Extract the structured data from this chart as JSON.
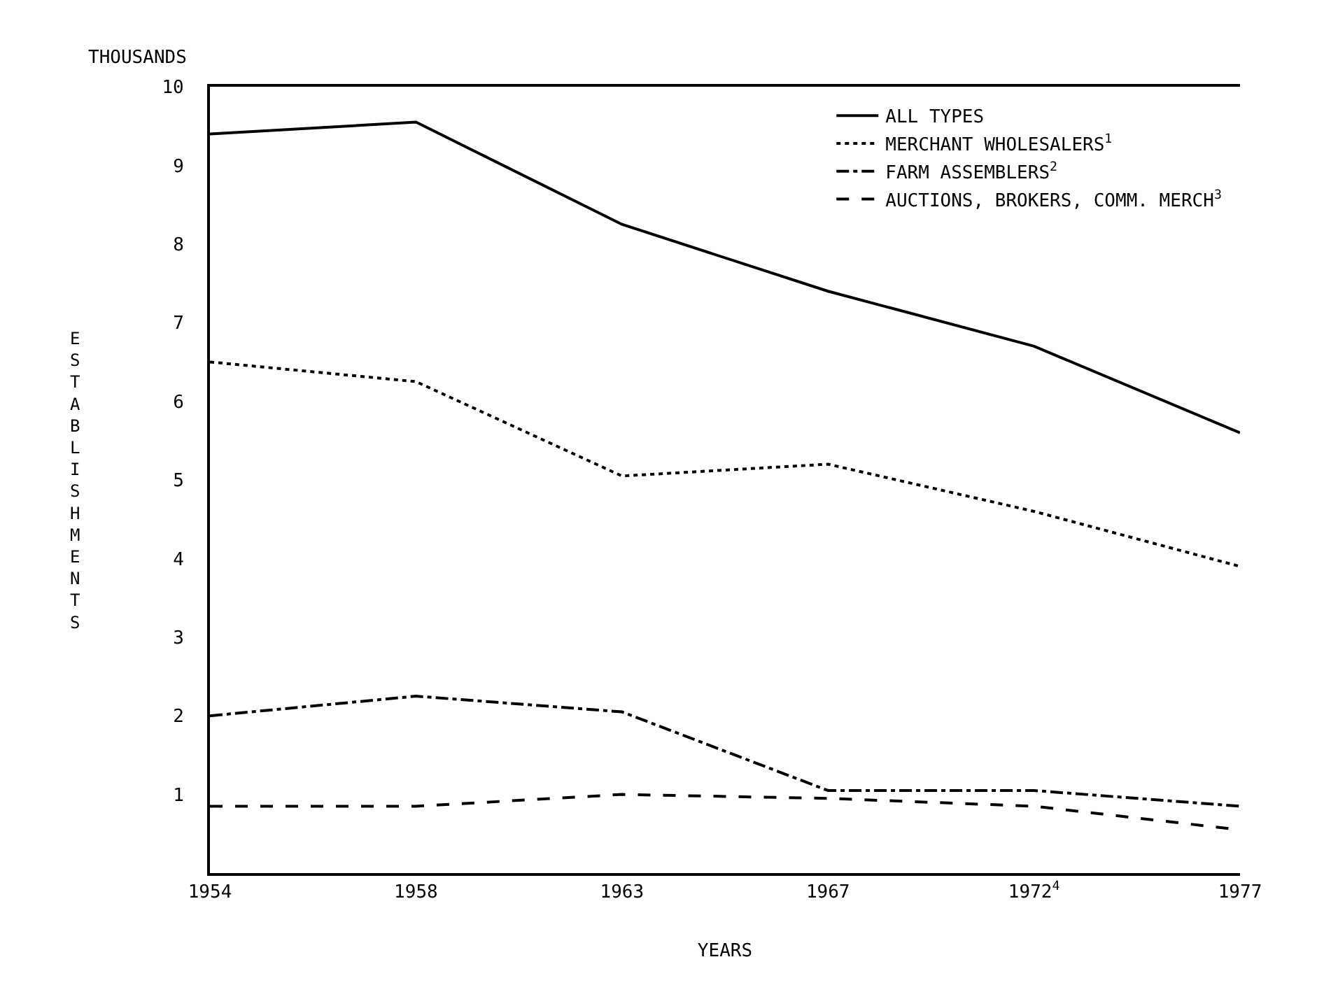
{
  "chart_data": {
    "type": "line",
    "xlabel": "YEARS",
    "ylabel": "ESTABLISHMENTS",
    "annotations": [
      "THOUSANDS"
    ],
    "categories": [
      "1954",
      "1958",
      "1963",
      "1967",
      "1972$^{4}$",
      "1977"
    ],
    "ylim": [
      0,
      10
    ],
    "yticks": [
      1,
      2,
      3,
      4,
      5,
      6,
      7,
      8,
      9,
      10
    ],
    "grid": false,
    "legend": "top right",
    "marker": "none",
    "series": [
      {
        "name": "ALL TYPES",
        "color": "#000000",
        "line_style": "solid",
        "values": [
          9.4,
          9.55,
          8.25,
          7.4,
          6.7,
          5.6
        ]
      },
      {
        "name": "MERCHANT WHOLESALERS$^{1}$",
        "color": "#000000",
        "line_style": "dotted",
        "values": [
          6.5,
          6.25,
          5.05,
          5.2,
          4.6,
          3.9
        ]
      },
      {
        "name": "FARM ASSEMBLERS$^{2}$",
        "color": "#000000",
        "line_style": "dashdot",
        "values": [
          2.0,
          2.25,
          2.05,
          1.05,
          1.05,
          0.85
        ]
      },
      {
        "name": "AUCTIONS, BROKERS, COMM. MERCH$^{3}$",
        "color": "#000000",
        "line_style": "dashed",
        "values": [
          0.85,
          0.85,
          1.0,
          0.95,
          0.85,
          0.55
        ]
      }
    ]
  }
}
